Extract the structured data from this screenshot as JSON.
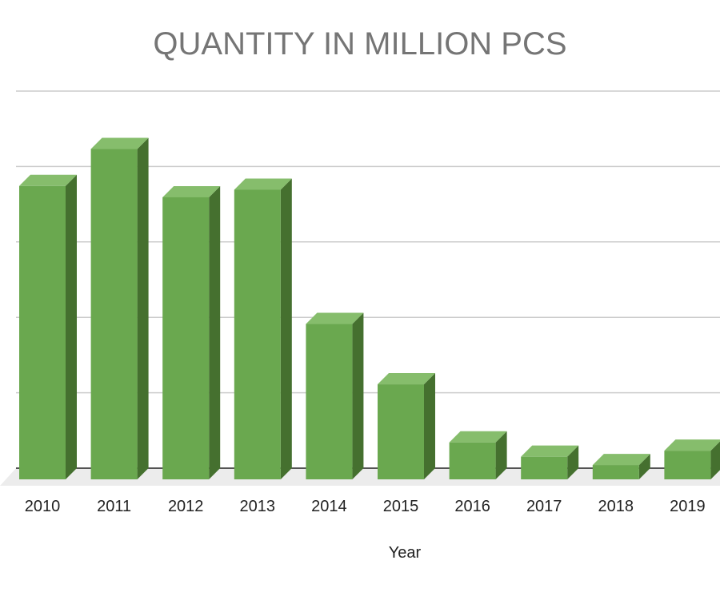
{
  "chart_data": {
    "type": "bar",
    "title": "QUANTITY IN MILLION PCS",
    "xlabel": "Year",
    "ylabel": "",
    "categories": [
      "2010",
      "2011",
      "2012",
      "2013",
      "2014",
      "2015",
      "2016",
      "2017",
      "2018",
      "2019"
    ],
    "values": [
      38.9,
      43.8,
      37.4,
      38.4,
      20.6,
      12.6,
      4.9,
      3.0,
      1.9,
      3.8
    ],
    "ylim": [
      0,
      50
    ],
    "grid": true,
    "legend": "none",
    "style": "3d-column",
    "colors": {
      "front": "#6aa84f",
      "top": "#86bd6c",
      "side": "#45702f",
      "floor": "#ececec",
      "gridline": "#cccccc",
      "baseline": "#222222"
    }
  }
}
